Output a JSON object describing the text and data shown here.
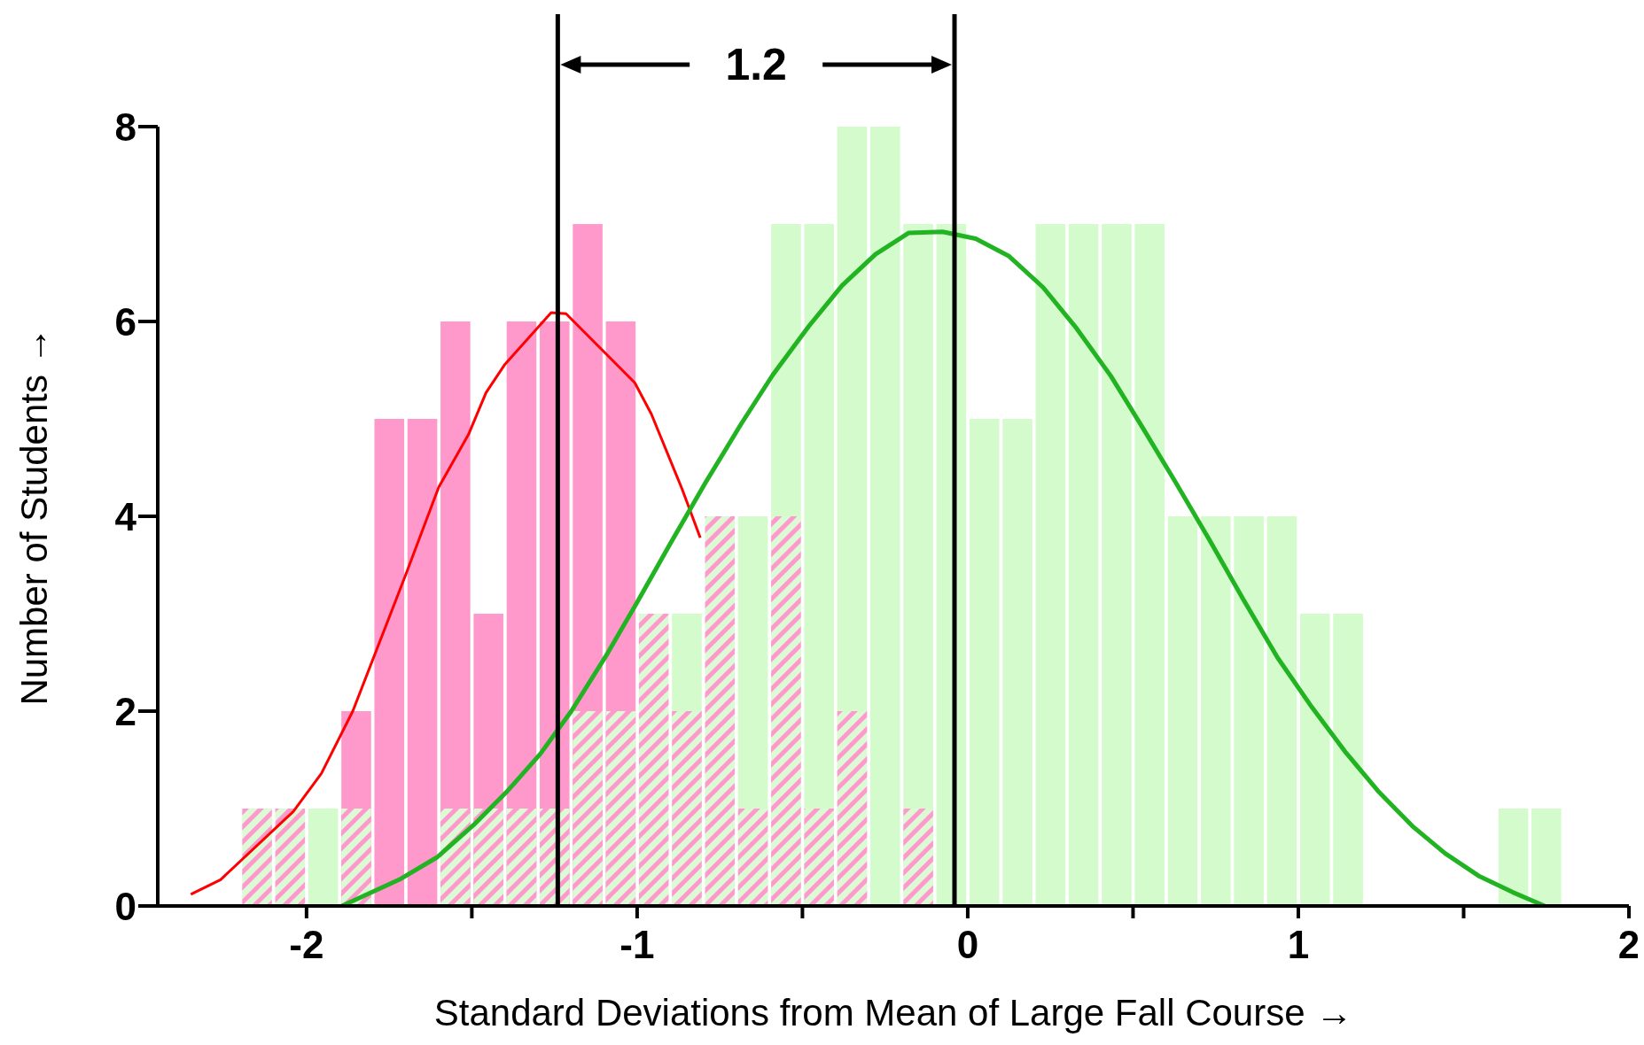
{
  "chart_data": {
    "type": "histogram",
    "xlabel": "Standard Deviations from Mean of Large Fall Course →",
    "ylabel": "Number of Students →",
    "annotations": [
      "1.2"
    ],
    "bins": [
      -2.2,
      -2.1,
      -2.0,
      -1.9,
      -1.8,
      -1.7,
      -1.6,
      -1.5,
      -1.4,
      -1.3,
      -1.2,
      -1.1,
      -1.0,
      -0.9,
      -0.8,
      -0.7,
      -0.6,
      -0.5,
      -0.4,
      -0.3,
      -0.2,
      -0.1,
      0,
      0.1,
      0.2,
      0.3,
      0.4,
      0.5,
      0.6,
      0.7,
      0.8,
      0.9,
      1.0,
      1.1,
      1.2,
      1.3,
      1.4,
      1.5,
      1.6,
      1.7,
      1.8
    ],
    "series": [
      {
        "color": "#d4fbcc",
        "values": [
          null,
          null,
          1,
          null,
          null,
          null,
          null,
          null,
          null,
          null,
          null,
          null,
          null,
          3,
          null,
          4,
          7,
          7,
          8,
          8,
          7,
          7,
          5,
          5,
          7,
          7,
          7,
          7,
          4,
          4,
          4,
          4,
          3,
          3,
          0,
          0,
          0,
          0,
          1,
          1
        ]
      },
      {
        "type": "line",
        "color": "#ff0000",
        "x": [
          -2.35,
          -2.26,
          -2.04,
          -1.955,
          -1.86,
          -1.7,
          -1.6,
          -1.51,
          -1.457,
          -1.4,
          -1.26,
          -1.215,
          -1.007,
          -0.957,
          -0.864,
          -0.809
        ],
        "values": [
          0.12,
          0.27,
          0.97,
          1.36,
          2.0,
          3.4,
          4.3,
          4.84,
          5.27,
          5.56,
          6.09,
          6.08,
          5.37,
          5.05,
          4.28,
          3.78
        ]
      },
      {
        "color": "#ff99cc",
        "values": [
          0,
          0,
          0,
          2,
          5,
          5,
          6,
          3,
          6,
          6,
          7,
          6,
          0,
          0,
          0,
          0,
          0,
          0,
          0,
          0,
          0,
          0,
          0,
          0,
          0,
          0,
          0,
          0,
          0,
          0,
          0,
          0,
          0,
          0,
          0,
          0,
          0,
          0,
          0,
          0
        ]
      },
      {
        "color": "#ff99cc",
        "values": [
          1,
          1,
          0,
          1,
          0,
          0,
          1,
          1,
          1,
          1,
          2,
          2,
          3,
          2,
          4,
          1,
          4,
          1,
          2,
          0,
          1,
          0,
          0,
          0,
          0,
          0,
          0,
          0,
          0,
          0,
          0,
          0,
          0,
          0,
          0,
          0,
          0,
          0,
          0,
          0
        ]
      },
      {
        "type": "line",
        "color": "#22b322",
        "x": [
          -1.893,
          -1.714,
          -1.605,
          -1.495,
          -1.395,
          -1.293,
          -1.199,
          -1.09,
          -0.996,
          -0.903,
          -0.794,
          -0.685,
          -0.59,
          -0.481,
          -0.38,
          -0.279,
          -0.178,
          -0.076,
          0.024,
          0.125,
          0.228,
          0.329,
          0.433,
          0.529,
          0.625,
          0.729,
          0.833,
          0.937,
          1.041,
          1.14,
          1.241,
          1.345,
          1.444,
          1.545,
          1.649,
          1.745
        ],
        "values": [
          0,
          0.28,
          0.5,
          0.83,
          1.17,
          1.56,
          2.0,
          2.59,
          3.14,
          3.7,
          4.34,
          4.95,
          5.45,
          5.95,
          6.37,
          6.69,
          6.91,
          6.92,
          6.85,
          6.67,
          6.35,
          5.93,
          5.44,
          4.91,
          4.37,
          3.77,
          3.15,
          2.55,
          2.04,
          1.59,
          1.18,
          0.82,
          0.54,
          0.31,
          0.14,
          0
        ]
      }
    ],
    "ref_lines": [
      {
        "axis": "x",
        "value": -1.24,
        "color": "#000000"
      },
      {
        "axis": "x",
        "value": -0.04,
        "color": "#000000"
      }
    ],
    "xlim": [
      -2.45,
      2.0
    ],
    "xticks": [
      -2,
      {
        "value": -1.5,
        "label": null
      },
      -1,
      {
        "value": -0.5,
        "label": null
      },
      0,
      {
        "value": 0.5,
        "label": null
      },
      1,
      {
        "value": 1.5,
        "label": null
      },
      2
    ],
    "ylim": [
      0,
      8
    ],
    "yticks": [
      0,
      2,
      4,
      6,
      8
    ],
    "grid": false,
    "legend": false
  }
}
